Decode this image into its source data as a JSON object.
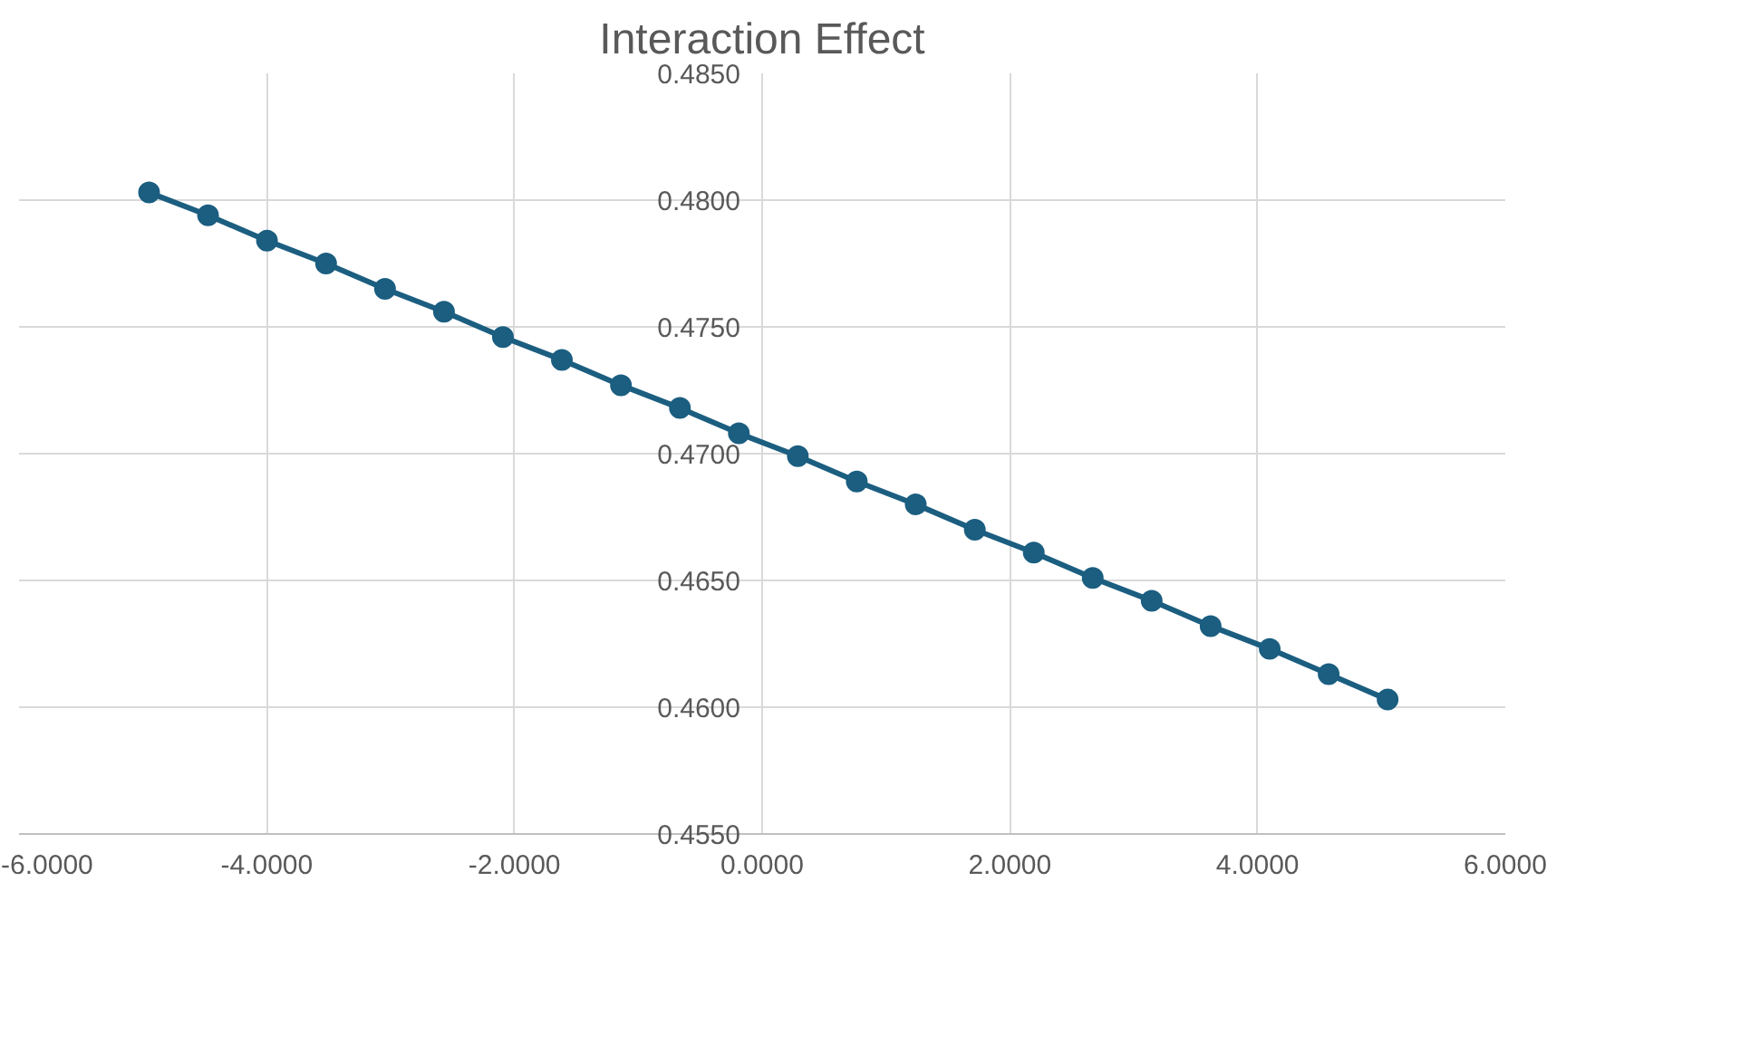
{
  "chart_data": {
    "type": "line",
    "title": "Interaction Effect",
    "x": [
      -4.95,
      -4.474,
      -3.998,
      -3.521,
      -3.045,
      -2.569,
      -2.093,
      -1.617,
      -1.14,
      -0.664,
      -0.188,
      0.288,
      0.764,
      1.24,
      1.717,
      2.193,
      2.669,
      3.145,
      3.621,
      4.098,
      4.574,
      5.05
    ],
    "series": [
      {
        "color": "#1b5e80",
        "values": [
          0.4803,
          0.4794,
          0.4784,
          0.4775,
          0.4765,
          0.4756,
          0.4746,
          0.4737,
          0.4727,
          0.4718,
          0.4708,
          0.4699,
          0.4689,
          0.468,
          0.467,
          0.4661,
          0.4651,
          0.4642,
          0.4632,
          0.4623,
          0.4613,
          0.4603
        ]
      }
    ],
    "xlim": [
      -6,
      6
    ],
    "xticks": [
      {
        "value": -6,
        "label": "-6.0000"
      },
      {
        "value": -4,
        "label": "-4.0000"
      },
      {
        "value": -2,
        "label": "-2.0000"
      },
      {
        "value": 0,
        "label": "0.0000"
      },
      {
        "value": 2,
        "label": "2.0000"
      },
      {
        "value": 4,
        "label": "4.0000"
      },
      {
        "value": 6,
        "label": "6.0000"
      }
    ],
    "ylim": [
      0.455,
      0.485
    ],
    "yticks": [
      {
        "value": 0.455,
        "label": "0.4550"
      },
      {
        "value": 0.46,
        "label": "0.4600"
      },
      {
        "value": 0.465,
        "label": "0.4650"
      },
      {
        "value": 0.47,
        "label": "0.4700"
      },
      {
        "value": 0.475,
        "label": "0.4750"
      },
      {
        "value": 0.48,
        "label": "0.4800"
      },
      {
        "value": 0.485,
        "label": "0.4850"
      }
    ],
    "grid": true,
    "marker": "circle",
    "line_style": "solid"
  }
}
